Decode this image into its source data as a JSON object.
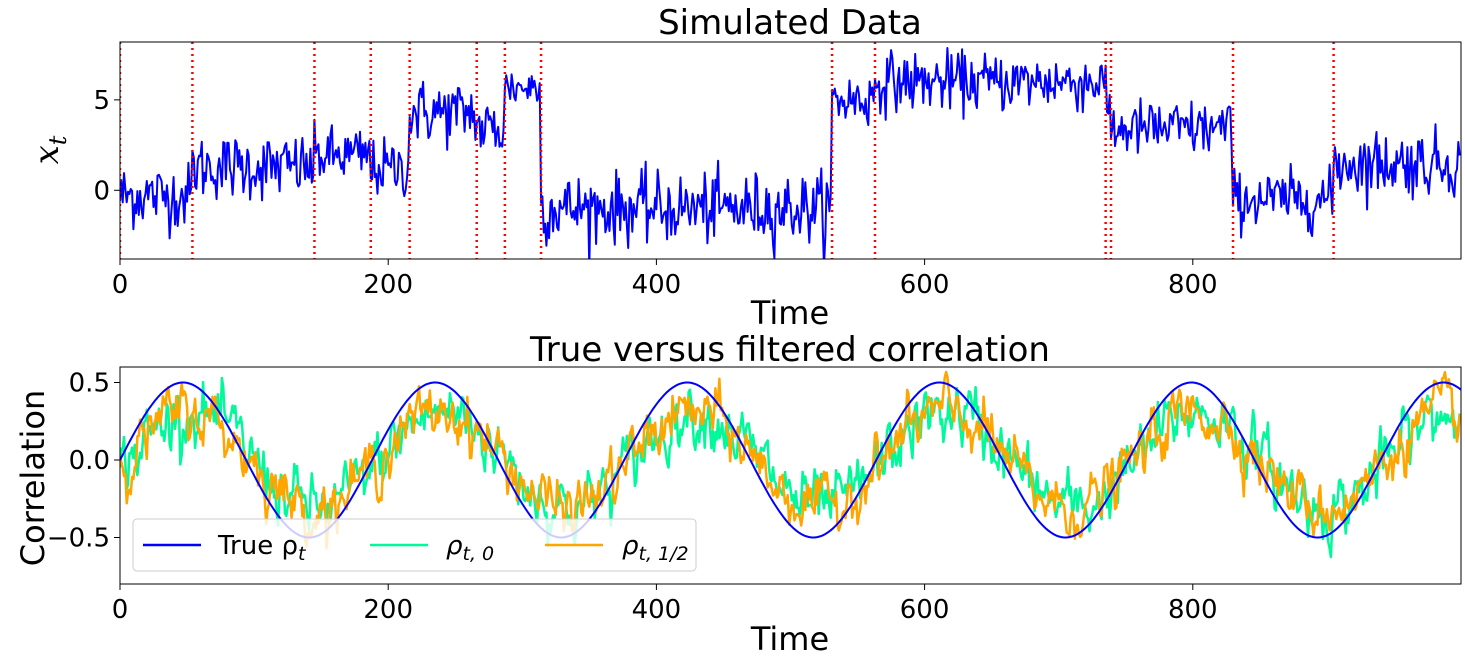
{
  "chart_data": [
    {
      "type": "line",
      "title": "Simulated Data",
      "xlabel": "Time",
      "ylabel": "x_t",
      "xlim": [
        0,
        1000
      ],
      "ylim": [
        -3.8,
        8.2
      ],
      "xticks": [
        0,
        200,
        400,
        600,
        800
      ],
      "xtick_labels": [
        "0",
        "200",
        "400",
        "600",
        "800"
      ],
      "yticks": [
        0,
        5
      ],
      "ytick_labels": [
        "0",
        "5"
      ],
      "series": [
        {
          "name": "x_t",
          "color": "#0000ff",
          "segments": [
            {
              "start": 0,
              "end": 54,
              "mean": -0.3,
              "sd": 0.9
            },
            {
              "start": 54,
              "end": 145,
              "mean": 1.3,
              "sd": 0.9
            },
            {
              "start": 145,
              "end": 187,
              "mean": 1.9,
              "sd": 0.8
            },
            {
              "start": 187,
              "end": 216,
              "mean": 1.2,
              "sd": 0.8
            },
            {
              "start": 216,
              "end": 266,
              "mean": 4.3,
              "sd": 0.9
            },
            {
              "start": 266,
              "end": 287,
              "mean": 3.4,
              "sd": 0.9
            },
            {
              "start": 287,
              "end": 314,
              "mean": 5.7,
              "sd": 0.6
            },
            {
              "start": 314,
              "end": 531,
              "mean": -1.0,
              "sd": 0.95
            },
            {
              "start": 531,
              "end": 563,
              "mean": 5.0,
              "sd": 0.8
            },
            {
              "start": 563,
              "end": 735,
              "mean": 6.0,
              "sd": 0.8
            },
            {
              "start": 735,
              "end": 739,
              "mean": 4.6,
              "sd": 0.7
            },
            {
              "start": 739,
              "end": 830,
              "mean": 3.4,
              "sd": 0.8
            },
            {
              "start": 830,
              "end": 905,
              "mean": -0.5,
              "sd": 0.8
            },
            {
              "start": 905,
              "end": 1000,
              "mean": 1.5,
              "sd": 0.9
            }
          ]
        }
      ],
      "changepoints": [
        0,
        54,
        145,
        187,
        216,
        266,
        287,
        314,
        531,
        563,
        735,
        739,
        830,
        905
      ],
      "changepoint_color": "#ff0000"
    },
    {
      "type": "line",
      "title": "True versus filtered correlation",
      "xlabel": "Time",
      "ylabel": "Correlation",
      "xlim": [
        0,
        1000
      ],
      "ylim": [
        -0.8,
        0.6
      ],
      "xticks": [
        0,
        200,
        400,
        600,
        800
      ],
      "xtick_labels": [
        "0",
        "200",
        "400",
        "600",
        "800"
      ],
      "yticks": [
        0.5,
        0.0,
        -0.5
      ],
      "ytick_labels": [
        "0.5",
        "0.0",
        "−0.5"
      ],
      "true_correlation": {
        "amplitude": 0.5,
        "period": 188,
        "phase": 0
      },
      "series": [
        {
          "name": "True ρ",
          "subscript": "t",
          "color": "#0000ff"
        },
        {
          "name": "ρ",
          "subscript": "t, 0",
          "color": "#00fa9a",
          "scale": 0.62,
          "sd": 0.085,
          "lag": 6
        },
        {
          "name": "ρ",
          "subscript": "t, 1/2",
          "color": "#ffa500",
          "scale": 0.62,
          "sd": 0.075,
          "lag": 4
        }
      ],
      "legend_location": "lower-left"
    }
  ]
}
